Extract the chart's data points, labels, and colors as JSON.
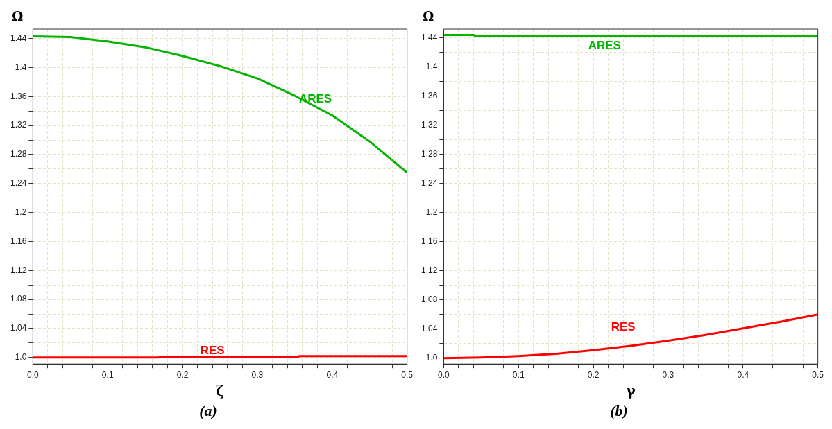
{
  "chart_data": [
    {
      "type": "line",
      "title": "(a)",
      "xlabel": "ζ",
      "ylabel": "Ω",
      "xlim": [
        0,
        0.5
      ],
      "ylim": [
        0.991,
        1.453
      ],
      "grid": true,
      "legend": false,
      "marker": "none",
      "line_style": "solid",
      "xticks": [
        {
          "value": 0,
          "label": "0.0"
        },
        {
          "value": 0.02,
          "label": null
        },
        {
          "value": 0.04,
          "label": null
        },
        {
          "value": 0.06,
          "label": null
        },
        {
          "value": 0.08,
          "label": null
        },
        0.1,
        {
          "value": 0.12,
          "label": null
        },
        {
          "value": 0.14,
          "label": null
        },
        {
          "value": 0.16,
          "label": null
        },
        {
          "value": 0.18,
          "label": null
        },
        0.2,
        {
          "value": 0.22,
          "label": null
        },
        {
          "value": 0.24,
          "label": null
        },
        {
          "value": 0.26,
          "label": null
        },
        {
          "value": 0.28,
          "label": null
        },
        0.3,
        {
          "value": 0.32,
          "label": null
        },
        {
          "value": 0.34,
          "label": null
        },
        {
          "value": 0.36,
          "label": null
        },
        {
          "value": 0.38,
          "label": null
        },
        0.4,
        {
          "value": 0.42,
          "label": null
        },
        {
          "value": 0.44,
          "label": null
        },
        {
          "value": 0.46,
          "label": null
        },
        {
          "value": 0.48,
          "label": null
        },
        0.5
      ],
      "yticks": [
        {
          "value": 1,
          "label": "1.0"
        },
        {
          "value": 1.02,
          "label": null
        },
        1.04,
        {
          "value": 1.06,
          "label": null
        },
        1.08,
        {
          "value": 1.1,
          "label": null
        },
        1.12,
        {
          "value": 1.14,
          "label": null
        },
        1.16,
        {
          "value": 1.18,
          "label": null
        },
        1.2,
        {
          "value": 1.22,
          "label": null
        },
        1.24,
        {
          "value": 1.26,
          "label": null
        },
        1.28,
        {
          "value": 1.3,
          "label": null
        },
        1.32,
        {
          "value": 1.34,
          "label": null
        },
        1.36,
        {
          "value": 1.38,
          "label": null
        },
        1.4,
        {
          "value": 1.42,
          "label": null
        },
        1.44
      ],
      "series": [
        {
          "name": "ARES",
          "color": "#00b400",
          "x": [
            0,
            0.05,
            0.1,
            0.15,
            0.2,
            0.25,
            0.3,
            0.35,
            0.4,
            0.45,
            0.5
          ],
          "values": [
            1.443,
            1.442,
            1.436,
            1.428,
            1.416,
            1.402,
            1.385,
            1.361,
            1.334,
            1.298,
            1.255
          ]
        },
        {
          "name": "RES",
          "color": "#ff0000",
          "x": [
            0,
            0.168,
            0.169,
            0.355,
            0.356,
            0.5
          ],
          "values": [
            1.0,
            1.0,
            1.001,
            1.001,
            1.002,
            1.002
          ]
        }
      ]
    },
    {
      "type": "line",
      "title": "(b)",
      "xlabel": "γ",
      "ylabel": "Ω",
      "xlim": [
        0,
        0.5
      ],
      "ylim": [
        0.992,
        1.452
      ],
      "grid": true,
      "legend": false,
      "marker": "none",
      "line_style": "solid",
      "xticks": [
        {
          "value": 0,
          "label": "0.0"
        },
        {
          "value": 0.02,
          "label": null
        },
        {
          "value": 0.04,
          "label": null
        },
        {
          "value": 0.06,
          "label": null
        },
        {
          "value": 0.08,
          "label": null
        },
        0.1,
        {
          "value": 0.12,
          "label": null
        },
        {
          "value": 0.14,
          "label": null
        },
        {
          "value": 0.16,
          "label": null
        },
        {
          "value": 0.18,
          "label": null
        },
        0.2,
        {
          "value": 0.22,
          "label": null
        },
        {
          "value": 0.24,
          "label": null
        },
        {
          "value": 0.26,
          "label": null
        },
        {
          "value": 0.28,
          "label": null
        },
        0.3,
        {
          "value": 0.32,
          "label": null
        },
        {
          "value": 0.34,
          "label": null
        },
        {
          "value": 0.36,
          "label": null
        },
        {
          "value": 0.38,
          "label": null
        },
        0.4,
        {
          "value": 0.42,
          "label": null
        },
        {
          "value": 0.44,
          "label": null
        },
        {
          "value": 0.46,
          "label": null
        },
        {
          "value": 0.48,
          "label": null
        },
        0.5
      ],
      "yticks": [
        {
          "value": 1,
          "label": "1.0"
        },
        {
          "value": 1.02,
          "label": null
        },
        1.04,
        {
          "value": 1.06,
          "label": null
        },
        1.08,
        {
          "value": 1.1,
          "label": null
        },
        1.12,
        {
          "value": 1.14,
          "label": null
        },
        1.16,
        {
          "value": 1.18,
          "label": null
        },
        1.2,
        {
          "value": 1.22,
          "label": null
        },
        1.24,
        {
          "value": 1.26,
          "label": null
        },
        1.28,
        {
          "value": 1.3,
          "label": null
        },
        1.32,
        {
          "value": 1.34,
          "label": null
        },
        1.36,
        {
          "value": 1.38,
          "label": null
        },
        1.4,
        {
          "value": 1.42,
          "label": null
        },
        1.44
      ],
      "series": [
        {
          "name": "ARES",
          "color": "#00b400",
          "x": [
            0,
            0.041,
            0.042,
            0.5
          ],
          "values": [
            1.444,
            1.444,
            1.442,
            1.442
          ]
        },
        {
          "name": "RES",
          "color": "#ff0000",
          "x": [
            0,
            0.05,
            0.1,
            0.15,
            0.2,
            0.25,
            0.3,
            0.35,
            0.4,
            0.45,
            0.5
          ],
          "values": [
            1.0,
            1.001,
            1.003,
            1.006,
            1.011,
            1.017,
            1.024,
            1.032,
            1.041,
            1.05,
            1.06
          ]
        }
      ]
    }
  ]
}
